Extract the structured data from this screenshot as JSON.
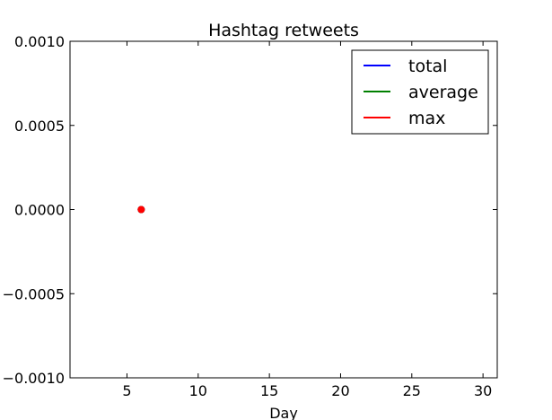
{
  "chart_data": {
    "type": "line",
    "title": "Hashtag retweets",
    "xlabel": "Day",
    "ylabel": "",
    "xlim": [
      1,
      31
    ],
    "ylim": [
      -0.001,
      0.001
    ],
    "xticks": [
      5,
      10,
      15,
      20,
      25,
      30
    ],
    "yticks": [
      0.001,
      0.0005,
      0.0,
      -0.0005,
      -0.001
    ],
    "xtick_labels": [
      "5",
      "10",
      "15",
      "20",
      "25",
      "30"
    ],
    "ytick_labels": [
      "0.0010",
      "0.0005",
      "0.0000",
      "−0.0005",
      "−0.0010"
    ],
    "grid": false,
    "legend_position": "top-right",
    "series": [
      {
        "name": "total",
        "color": "#0000ff",
        "x": [
          6
        ],
        "y": [
          0
        ]
      },
      {
        "name": "average",
        "color": "#008000",
        "x": [
          6
        ],
        "y": [
          0
        ]
      },
      {
        "name": "max",
        "color": "#ff0000",
        "x": [
          6
        ],
        "y": [
          0
        ],
        "marker": "circle"
      }
    ]
  }
}
